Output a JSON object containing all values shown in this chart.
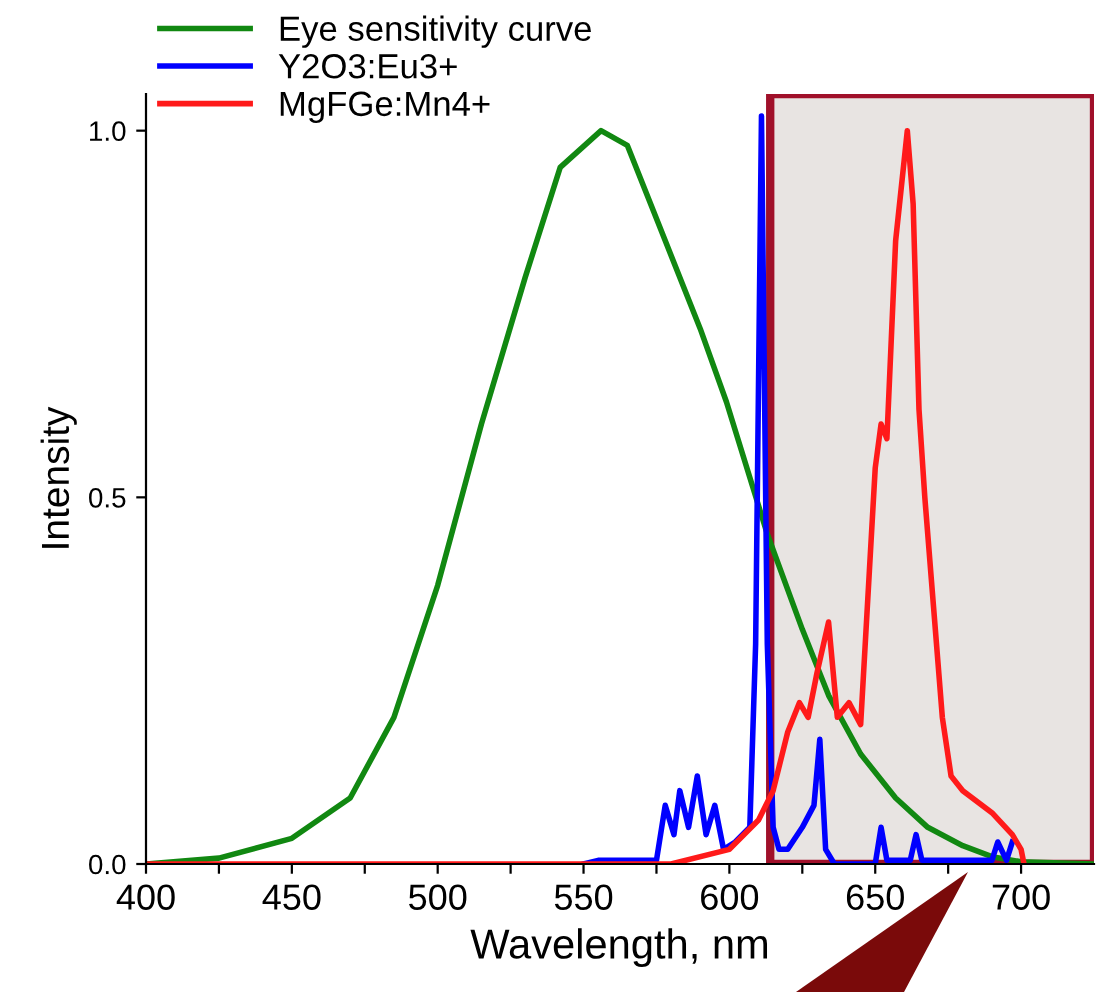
{
  "chart_data": {
    "type": "line",
    "xlabel": "Wavelength, nm",
    "ylabel": "Intensity",
    "xlim": [
      400,
      725
    ],
    "ylim": [
      0,
      1.05
    ],
    "xticks": [
      400,
      {
        "value": 425,
        "label": null
      },
      450,
      {
        "value": 475,
        "label": null
      },
      500,
      {
        "value": 525,
        "label": null
      },
      550,
      {
        "value": 575,
        "label": null
      },
      600,
      {
        "value": 625,
        "label": null
      },
      650,
      {
        "value": 675,
        "label": null
      },
      700
    ],
    "yticks": [
      {
        "value": 0,
        "label": "0.0"
      },
      0.5,
      {
        "value": 1,
        "label": "1.0"
      }
    ],
    "grid": false,
    "legend": "top left",
    "bands": [
      {
        "axis": "x",
        "from": 614,
        "to": 725,
        "color": "#e8e4e2"
      }
    ],
    "series": [
      {
        "name": "Eye sensitivity curve",
        "color": "#118811",
        "x": [
          400,
          425,
          450,
          470,
          485,
          500,
          515,
          530,
          542,
          556,
          565,
          577,
          590,
          599,
          613,
          625,
          634,
          645,
          657,
          668,
          680,
          690,
          700,
          725
        ],
        "values": [
          0,
          0.008,
          0.035,
          0.09,
          0.2,
          0.38,
          0.6,
          0.8,
          0.95,
          1.0,
          0.98,
          0.86,
          0.73,
          0.63,
          0.45,
          0.32,
          0.23,
          0.15,
          0.09,
          0.05,
          0.025,
          0.01,
          0.003,
          0
        ]
      },
      {
        "name": "Y2O3:Eu3+",
        "color": "#0000ff",
        "x": [
          550,
          555,
          575,
          578,
          581,
          583,
          586,
          589,
          592,
          595,
          598,
          602,
          607,
          609,
          611,
          613,
          615,
          617,
          620,
          625,
          629,
          631,
          633,
          636,
          650,
          652,
          654,
          662,
          664,
          666,
          690,
          692,
          695,
          697
        ],
        "values": [
          0,
          0.005,
          0.005,
          0.08,
          0.04,
          0.1,
          0.05,
          0.12,
          0.04,
          0.08,
          0.02,
          0.03,
          0.05,
          0.3,
          1.02,
          0.3,
          0.05,
          0.02,
          0.02,
          0.05,
          0.08,
          0.17,
          0.02,
          0.0,
          0.0,
          0.05,
          0.005,
          0.005,
          0.04,
          0.005,
          0.005,
          0.03,
          0.005,
          0.03
        ]
      },
      {
        "name": "MgFGe:Mn4+",
        "color": "#ff1a1a",
        "x": [
          400,
          580,
          600,
          610,
          615,
          620,
          624,
          627,
          630,
          634,
          637,
          641,
          645,
          648,
          650,
          652,
          654,
          657,
          661,
          663,
          665,
          667,
          670,
          673,
          676,
          680,
          690,
          697,
          700,
          701
        ],
        "values": [
          0,
          0,
          0.02,
          0.06,
          0.1,
          0.18,
          0.22,
          0.2,
          0.26,
          0.33,
          0.2,
          0.22,
          0.19,
          0.4,
          0.54,
          0.6,
          0.58,
          0.85,
          1.0,
          0.9,
          0.62,
          0.5,
          0.35,
          0.2,
          0.12,
          0.1,
          0.07,
          0.04,
          0.02,
          0
        ]
      }
    ]
  }
}
